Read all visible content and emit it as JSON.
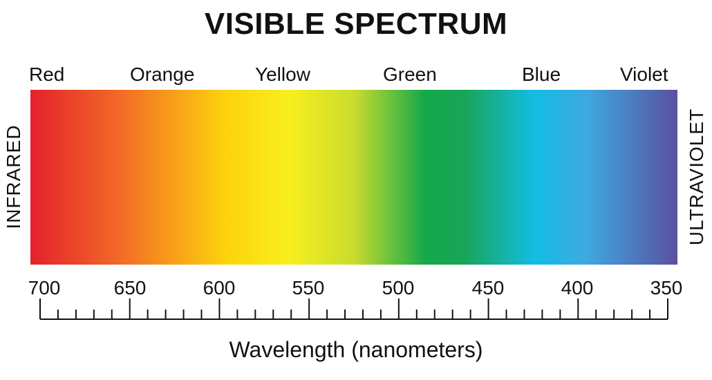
{
  "title": "VISIBLE SPECTRUM",
  "color_names": [
    "Red",
    "Orange",
    "Yellow",
    "Green",
    "Blue",
    "Violet"
  ],
  "side_labels": {
    "left": "INFRARED",
    "right": "ULTRAVIOLET"
  },
  "axis": {
    "title": "Wavelength (nanometers)",
    "tick_labels": [
      "700",
      "650",
      "600",
      "550",
      "500",
      "450",
      "400",
      "350"
    ],
    "range": [
      700,
      350
    ],
    "minor_ticks_per_major": 5
  },
  "gradient_colors": [
    "#e3222b",
    "#f26b27",
    "#fdd20c",
    "#f7ef1d",
    "#c9dc2e",
    "#14a84a",
    "#18a558",
    "#12bde4",
    "#3fa8e0",
    "#5b4fa0"
  ]
}
